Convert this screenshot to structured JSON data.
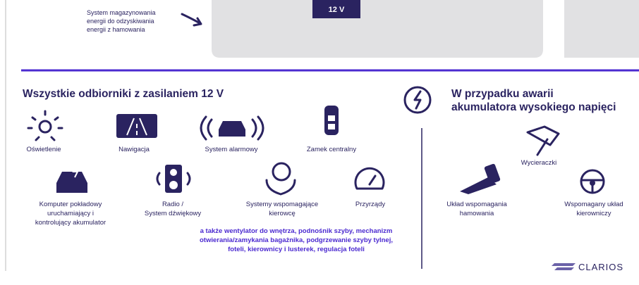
{
  "top": {
    "battery": "12 V",
    "caption": [
      "System magazynowania",
      "energii do odzyskiwania",
      "energii z hamowania"
    ]
  },
  "left": {
    "title": "Wszystkie odbiorniki z zasilaniem 12 V",
    "items": [
      {
        "label": [
          "Oświetlenie"
        ]
      },
      {
        "label": [
          "Nawigacja"
        ]
      },
      {
        "label": [
          "System alarmowy"
        ]
      },
      {
        "label": [
          "Zamek centralny"
        ]
      },
      {
        "label": [
          "Komputer pokładowy",
          "uruchamiający i",
          "kontrolujący akumulator"
        ]
      },
      {
        "label": [
          "Radio /",
          "System dźwiękowy"
        ]
      },
      {
        "label": [
          "Systemy wspomagające",
          "kierowcę"
        ]
      },
      {
        "label": [
          "Przyrządy"
        ]
      }
    ],
    "note": [
      "a także wentylator do wnętrza, podnośnik szyby, mechanizm",
      "otwierania/zamykania bagażnika, podgrzewanie szyby tylnej,",
      "foteli, kierownicy i lusterek, regulacja foteli"
    ]
  },
  "right": {
    "title": [
      "W przypadku awarii",
      "akumulatora wysokiego napięci"
    ],
    "items": [
      {
        "label": [
          "Wycieraczki"
        ]
      },
      {
        "label": [
          "Układ wspomagania",
          "hamowania"
        ]
      },
      {
        "label": [
          "Wspomagany układ",
          "kierowniczy"
        ]
      }
    ]
  },
  "logo": "CLARIOS"
}
